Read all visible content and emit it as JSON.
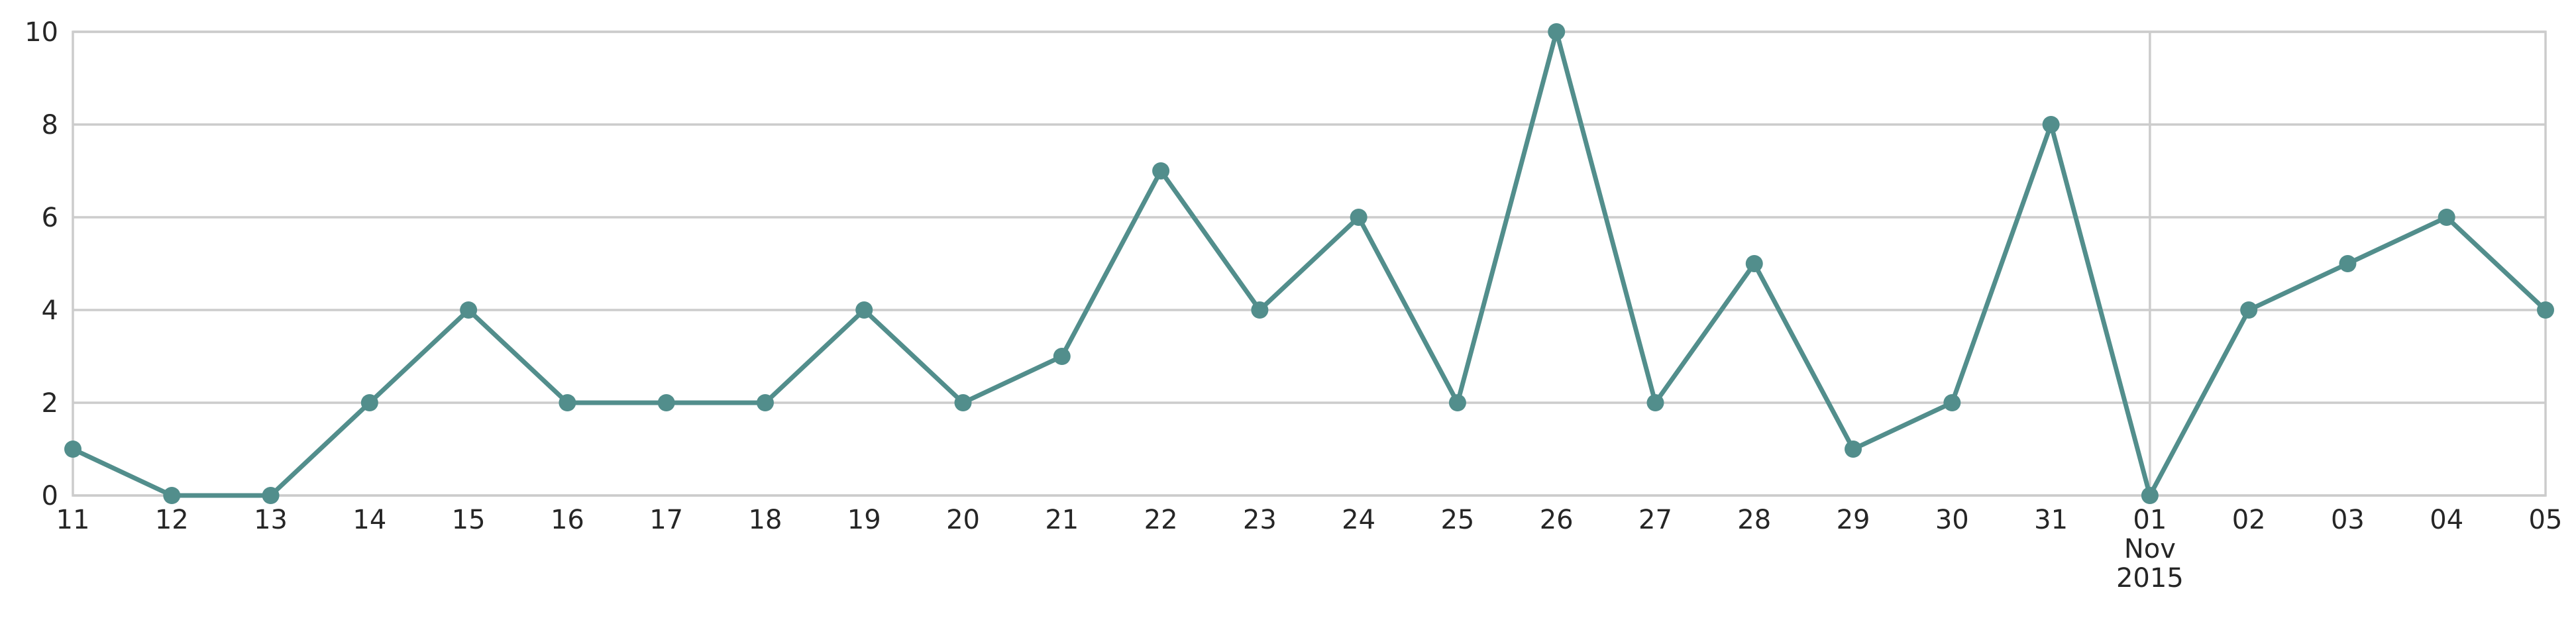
{
  "chart_data": {
    "type": "line",
    "title": "",
    "xlabel": "",
    "ylabel": "",
    "x": [
      "2015-10-11",
      "2015-10-12",
      "2015-10-13",
      "2015-10-14",
      "2015-10-15",
      "2015-10-16",
      "2015-10-17",
      "2015-10-18",
      "2015-10-19",
      "2015-10-20",
      "2015-10-21",
      "2015-10-22",
      "2015-10-23",
      "2015-10-24",
      "2015-10-25",
      "2015-10-26",
      "2015-10-27",
      "2015-10-28",
      "2015-10-29",
      "2015-10-30",
      "2015-10-31",
      "2015-11-01",
      "2015-11-02",
      "2015-11-03",
      "2015-11-04",
      "2015-11-05"
    ],
    "x_tick_labels": [
      "11",
      "12",
      "13",
      "14",
      "15",
      "16",
      "17",
      "18",
      "19",
      "20",
      "21",
      "22",
      "23",
      "24",
      "25",
      "26",
      "27",
      "28",
      "29",
      "30",
      "31",
      "01",
      "02",
      "03",
      "04",
      "05"
    ],
    "x_tick_sublabels": {
      "21": [
        "Nov",
        "2015"
      ]
    },
    "xlim": [
      "2015-10-11",
      "2015-11-05"
    ],
    "series": [
      {
        "values": [
          1,
          0,
          0,
          2,
          4,
          2,
          2,
          2,
          4,
          2,
          3,
          7,
          4,
          6,
          2,
          10,
          2,
          5,
          1,
          2,
          8,
          0,
          4,
          5,
          6,
          4
        ],
        "color": "#528e8c"
      }
    ],
    "ylim": [
      0,
      10
    ],
    "y_ticks": [
      0,
      2,
      4,
      6,
      8,
      10
    ],
    "grid": true,
    "legend": "none"
  }
}
